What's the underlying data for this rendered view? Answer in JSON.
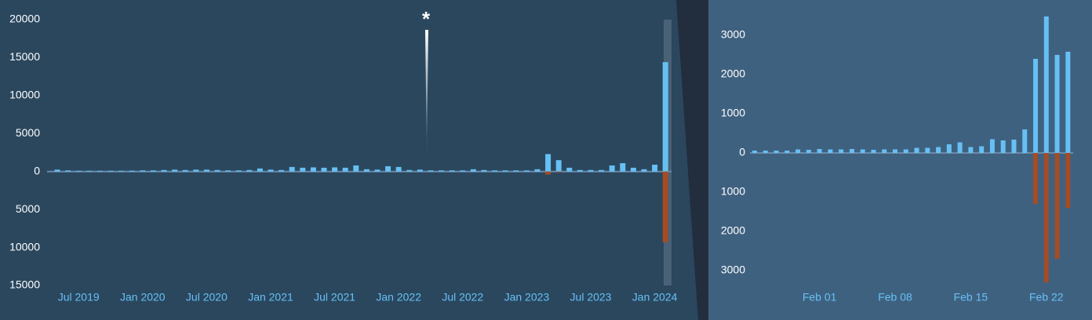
{
  "chart_data": [
    {
      "type": "bar",
      "annotation": "*",
      "categories": [
        null,
        null,
        "Jul 2019",
        null,
        null,
        null,
        null,
        null,
        "Jan 2020",
        null,
        null,
        null,
        null,
        null,
        "Jul 2020",
        null,
        null,
        null,
        null,
        null,
        "Jan 2021",
        null,
        null,
        null,
        null,
        null,
        "Jul 2021",
        null,
        null,
        null,
        null,
        null,
        "Jan 2022",
        null,
        null,
        null,
        null,
        null,
        "Jul 2022",
        null,
        null,
        null,
        null,
        null,
        "Jan 2023",
        null,
        null,
        null,
        null,
        null,
        "Jul 2023",
        null,
        null,
        null,
        null,
        null,
        "Jan 2024",
        null
      ],
      "series": [
        {
          "color": "#66c0f4",
          "values": [
            250,
            150,
            100,
            100,
            100,
            100,
            100,
            120,
            150,
            150,
            200,
            250,
            200,
            250,
            250,
            200,
            150,
            150,
            200,
            400,
            250,
            200,
            600,
            500,
            550,
            500,
            550,
            500,
            800,
            300,
            250,
            700,
            600,
            200,
            250,
            150,
            150,
            150,
            150,
            300,
            200,
            150,
            150,
            150,
            150,
            300,
            2300,
            1500,
            500,
            200,
            200,
            200,
            800,
            1100,
            500,
            300,
            900,
            14400
          ]
        },
        {
          "color": "#a34c25",
          "values": [
            0,
            0,
            0,
            0,
            0,
            0,
            0,
            0,
            0,
            0,
            0,
            0,
            0,
            0,
            0,
            0,
            0,
            0,
            0,
            0,
            0,
            0,
            0,
            0,
            0,
            0,
            0,
            0,
            0,
            0,
            0,
            0,
            0,
            0,
            0,
            0,
            0,
            0,
            0,
            0,
            0,
            0,
            0,
            0,
            0,
            0,
            -400,
            -100,
            0,
            0,
            0,
            0,
            0,
            0,
            0,
            0,
            0,
            -9300
          ]
        }
      ],
      "ylim": [
        -15000,
        20000
      ],
      "yticks": [
        20000,
        15000,
        10000,
        5000,
        0,
        {
          "value": -5000,
          "label": "5000"
        },
        {
          "value": -10000,
          "label": "10000"
        },
        {
          "value": -15000,
          "label": "15000"
        }
      ]
    },
    {
      "type": "bar",
      "categories": [
        null,
        null,
        null,
        null,
        null,
        null,
        "Feb 01",
        null,
        null,
        null,
        null,
        null,
        null,
        "Feb 08",
        null,
        null,
        null,
        null,
        null,
        null,
        "Feb 15",
        null,
        null,
        null,
        null,
        null,
        null,
        "Feb 22",
        null,
        null
      ],
      "series": [
        {
          "color": "#66c0f4",
          "values": [
            60,
            60,
            60,
            60,
            90,
            80,
            100,
            90,
            90,
            100,
            90,
            80,
            90,
            90,
            90,
            130,
            130,
            150,
            220,
            270,
            150,
            170,
            350,
            320,
            340,
            600,
            2400,
            3480,
            2500,
            2580
          ]
        },
        {
          "color": "#a34c25",
          "values": [
            0,
            0,
            0,
            0,
            0,
            0,
            0,
            0,
            0,
            0,
            0,
            0,
            0,
            0,
            0,
            0,
            0,
            0,
            0,
            0,
            0,
            0,
            0,
            0,
            0,
            0,
            -1300,
            -3300,
            -2700,
            -1400
          ]
        }
      ],
      "ylim": [
        -3400,
        3500
      ],
      "yticks": [
        3000,
        2000,
        1000,
        0,
        {
          "value": -1000,
          "label": "1000"
        },
        {
          "value": -2000,
          "label": "2000"
        },
        {
          "value": -3000,
          "label": "3000"
        }
      ]
    }
  ]
}
